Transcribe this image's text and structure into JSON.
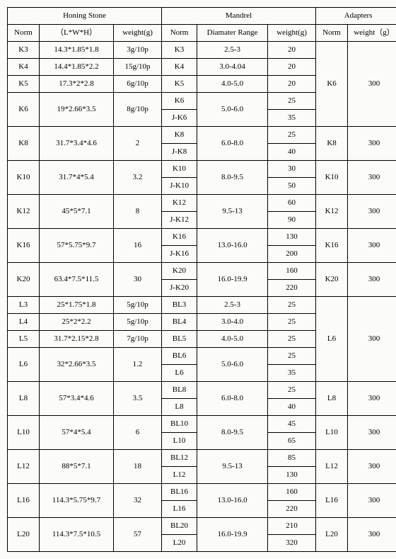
{
  "font_family": "SimSun, serif",
  "background_color": "#fbfbf9",
  "border_color": "#000000",
  "text_color": "#000000",
  "cell_font_size": 11,
  "sections": {
    "honing": "Honing Stone",
    "mandrel": "Mandrel",
    "adapters": "Adapters"
  },
  "headers": {
    "norm": "Norm",
    "lwh": "（L*W*H）",
    "weight_g": "weight(g)",
    "dia": "Diamater Range",
    "weight_g2": "weight（g）"
  },
  "honing_rows": [
    {
      "n": "K3",
      "d": "14.3*1.85*1.8",
      "w": "3g/10p"
    },
    {
      "n": "K4",
      "d": "14.4*1.85*2.2",
      "w": "15g/10p"
    },
    {
      "n": "K5",
      "d": "17.3*2*2.8",
      "w": "6g/10p"
    },
    {
      "n": "K6",
      "d": "19*2.66*3.5",
      "w": "8g/10p",
      "rs": 2
    },
    {
      "n": "K8",
      "d": "31.7*3.4*4.6",
      "w": "2",
      "rs": 2
    },
    {
      "n": "K10",
      "d": "31.7*4*5.4",
      "w": "3.2",
      "rs": 2
    },
    {
      "n": "K12",
      "d": "45*5*7.1",
      "w": "8",
      "rs": 2
    },
    {
      "n": "K16",
      "d": "57*5.75*9.7",
      "w": "16",
      "rs": 2
    },
    {
      "n": "K20",
      "d": "63.4*7.5*11.5",
      "w": "30",
      "rs": 2
    },
    {
      "n": "L3",
      "d": "25*1.75*1.8",
      "w": "5g/10p"
    },
    {
      "n": "L4",
      "d": "25*2*2.2",
      "w": "5g/10p"
    },
    {
      "n": "L5",
      "d": "31.7*2.15*2.8",
      "w": "7g/10p"
    },
    {
      "n": "L6",
      "d": "32*2.66*3.5",
      "w": "1.2",
      "rs": 2
    },
    {
      "n": "L8",
      "d": "57*3.4*4.6",
      "w": "3.5",
      "rs": 2
    },
    {
      "n": "L10",
      "d": "57*4*5.4",
      "w": "6",
      "rs": 2
    },
    {
      "n": "L12",
      "d": "88*5*7.1",
      "w": "18",
      "rs": 2
    },
    {
      "n": "L16",
      "d": "114.3*5.75*9.7",
      "w": "32",
      "rs": 2
    },
    {
      "n": "L20",
      "d": "114.3*7.5*10.5",
      "w": "57",
      "rs": 2
    }
  ],
  "mandrel_rows": [
    {
      "n": "K3",
      "dia": "2.5-3",
      "w": "20"
    },
    {
      "n": "K4",
      "dia": "3.0-4.04",
      "w": "20"
    },
    {
      "n": "K5",
      "dia": "4.0-5.0",
      "w": "20"
    },
    {
      "n": "K6",
      "dia": "5.0-6.0",
      "dia_rs": 2,
      "w": "25"
    },
    {
      "n": "J-K6",
      "w": "35"
    },
    {
      "n": "K8",
      "dia": "6.0-8.0",
      "dia_rs": 2,
      "w": "25"
    },
    {
      "n": "J-K8",
      "w": "40"
    },
    {
      "n": "K10",
      "dia": "8.0-9.5",
      "dia_rs": 2,
      "w": "30"
    },
    {
      "n": "J-K10",
      "w": "50"
    },
    {
      "n": "K12",
      "dia": "9.5-13",
      "dia_rs": 2,
      "w": "60"
    },
    {
      "n": "J-K12",
      "w": "90"
    },
    {
      "n": "K16",
      "dia": "13.0-16.0",
      "dia_rs": 2,
      "w": "130"
    },
    {
      "n": "J-K16",
      "w": "200"
    },
    {
      "n": "K20",
      "dia": "16.0-19.9",
      "dia_rs": 2,
      "w": "160"
    },
    {
      "n": "J-K20",
      "w": "220"
    },
    {
      "n": "BL3",
      "dia": "2.5-3",
      "w": "25"
    },
    {
      "n": "BL4",
      "dia": "3.0-4.0",
      "w": "25"
    },
    {
      "n": "BL5",
      "dia": "4.0-5.0",
      "w": "25"
    },
    {
      "n": "BL6",
      "dia": "5.0-6.0",
      "dia_rs": 2,
      "w": "25"
    },
    {
      "n": "L6",
      "w": "35"
    },
    {
      "n": "BL8",
      "dia": "6.0-8.0",
      "dia_rs": 2,
      "w": "25"
    },
    {
      "n": "L8",
      "w": "40"
    },
    {
      "n": "BL10",
      "dia": "8.0-9.5",
      "dia_rs": 2,
      "w": "45"
    },
    {
      "n": "L10",
      "w": "65"
    },
    {
      "n": "BL12",
      "dia": "9.5-13",
      "dia_rs": 2,
      "w": "85"
    },
    {
      "n": "L12",
      "w": "130"
    },
    {
      "n": "BL16",
      "dia": "13.0-16.0",
      "dia_rs": 2,
      "w": "160"
    },
    {
      "n": "L16",
      "w": "220"
    },
    {
      "n": "BL20",
      "dia": "16.0-19.9",
      "dia_rs": 2,
      "w": "210"
    },
    {
      "n": "L20",
      "w": "320"
    }
  ],
  "adapter_blocks": [
    {
      "n": "K6",
      "w": "300",
      "rs": 5
    },
    {
      "n": "K8",
      "w": "300",
      "rs": 2
    },
    {
      "n": "K10",
      "w": "300",
      "rs": 2
    },
    {
      "n": "K12",
      "w": "300",
      "rs": 2
    },
    {
      "n": "K16",
      "w": "300",
      "rs": 2
    },
    {
      "n": "K20",
      "w": "300",
      "rs": 2
    },
    {
      "n": "L6",
      "w": "300",
      "rs": 5
    },
    {
      "n": "L8",
      "w": "300",
      "rs": 2
    },
    {
      "n": "L10",
      "w": "300",
      "rs": 2
    },
    {
      "n": "L12",
      "w": "300",
      "rs": 2
    },
    {
      "n": "L16",
      "w": "300",
      "rs": 2
    },
    {
      "n": "L20",
      "w": "300",
      "rs": 2
    }
  ]
}
